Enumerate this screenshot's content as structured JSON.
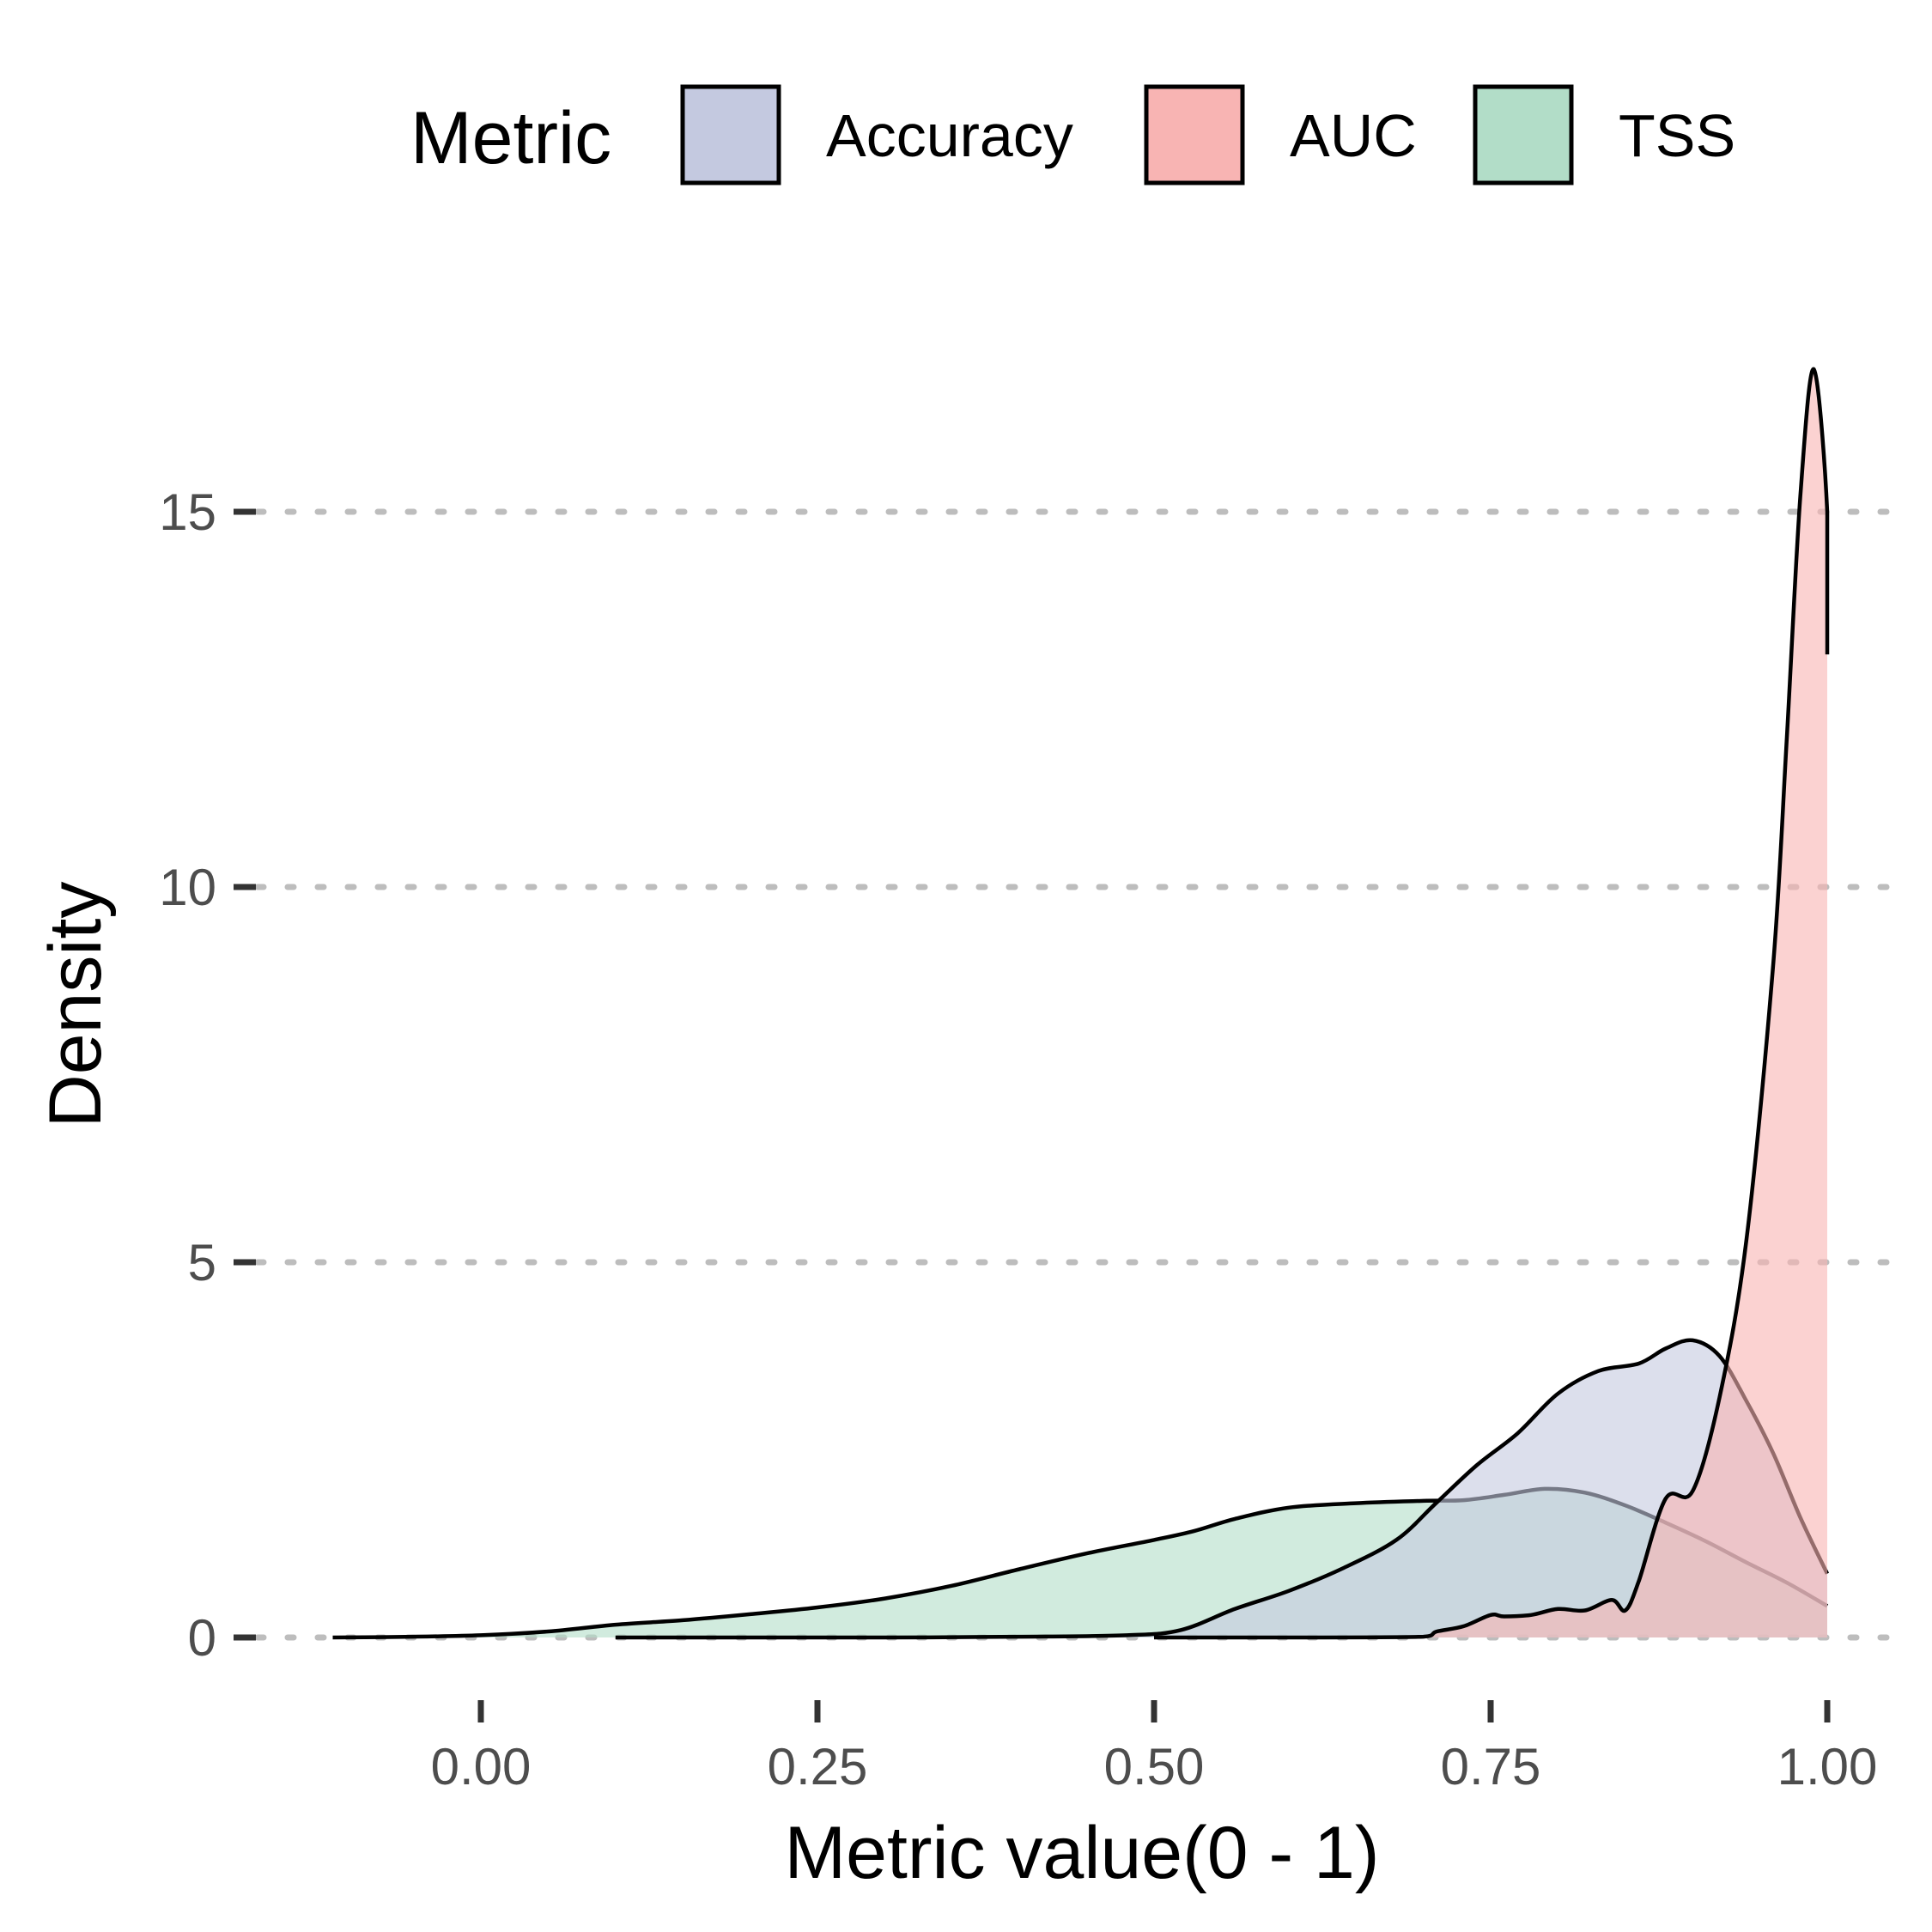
{
  "chart_data": {
    "type": "area",
    "title": "",
    "xlabel": "Metric value(0 - 1)",
    "ylabel": "Density",
    "xlim": [
      -0.22,
      1.06
    ],
    "ylim": [
      -0.4,
      17.2
    ],
    "x_ticks": [
      0.0,
      0.25,
      0.5,
      0.75,
      1.0
    ],
    "x_tick_labels": [
      "0.00",
      "0.25",
      "0.50",
      "0.75",
      "1.00"
    ],
    "y_ticks": [
      0,
      5,
      10,
      15
    ],
    "y_tick_labels": [
      "0",
      "5",
      "10",
      "15"
    ],
    "grid": "horizontal dotted major lines",
    "legend": {
      "title": "Metric",
      "position": "top",
      "entries": [
        "Accuracy",
        "AUC",
        "TSS"
      ]
    },
    "series": [
      {
        "name": "TSS",
        "color": "#b2ddc8",
        "x": [
          -0.11,
          -0.05,
          0.0,
          0.05,
          0.1,
          0.15,
          0.2,
          0.25,
          0.3,
          0.35,
          0.4,
          0.45,
          0.5,
          0.53,
          0.56,
          0.6,
          0.65,
          0.7,
          0.73,
          0.76,
          0.79,
          0.82,
          0.85,
          0.88,
          0.91,
          0.94,
          0.97,
          1.0
        ],
        "y": [
          0,
          0.01,
          0.03,
          0.08,
          0.17,
          0.23,
          0.31,
          0.4,
          0.52,
          0.69,
          0.91,
          1.12,
          1.3,
          1.42,
          1.58,
          1.73,
          1.79,
          1.82,
          1.83,
          1.9,
          1.98,
          1.93,
          1.76,
          1.53,
          1.28,
          1.0,
          0.73,
          0.42
        ]
      },
      {
        "name": "Accuracy",
        "color": "#c4c9e0",
        "x": [
          0.1,
          0.2,
          0.3,
          0.4,
          0.48,
          0.52,
          0.56,
          0.6,
          0.64,
          0.68,
          0.71,
          0.74,
          0.77,
          0.8,
          0.83,
          0.86,
          0.88,
          0.9,
          0.92,
          0.94,
          0.96,
          0.98,
          1.0
        ],
        "y": [
          0,
          0.0,
          0.0,
          0.01,
          0.03,
          0.1,
          0.38,
          0.62,
          0.92,
          1.3,
          1.8,
          2.3,
          2.72,
          3.25,
          3.55,
          3.65,
          3.85,
          3.96,
          3.75,
          3.15,
          2.45,
          1.6,
          0.85
        ]
      },
      {
        "name": "AUC",
        "color": "#f8b4b3",
        "x": [
          0.5,
          0.6,
          0.7,
          0.71,
          0.73,
          0.75,
          0.76,
          0.78,
          0.8,
          0.82,
          0.84,
          0.85,
          0.86,
          0.88,
          0.9,
          0.92,
          0.94,
          0.96,
          0.97,
          0.98,
          0.99,
          1.0,
          1.0
        ],
        "y": [
          0,
          0.0,
          0.01,
          0.08,
          0.15,
          0.3,
          0.28,
          0.3,
          0.38,
          0.36,
          0.5,
          0.36,
          0.75,
          1.85,
          1.95,
          3.2,
          5.3,
          9.0,
          12.0,
          15.2,
          16.9,
          15.0,
          13.1
        ]
      }
    ]
  }
}
